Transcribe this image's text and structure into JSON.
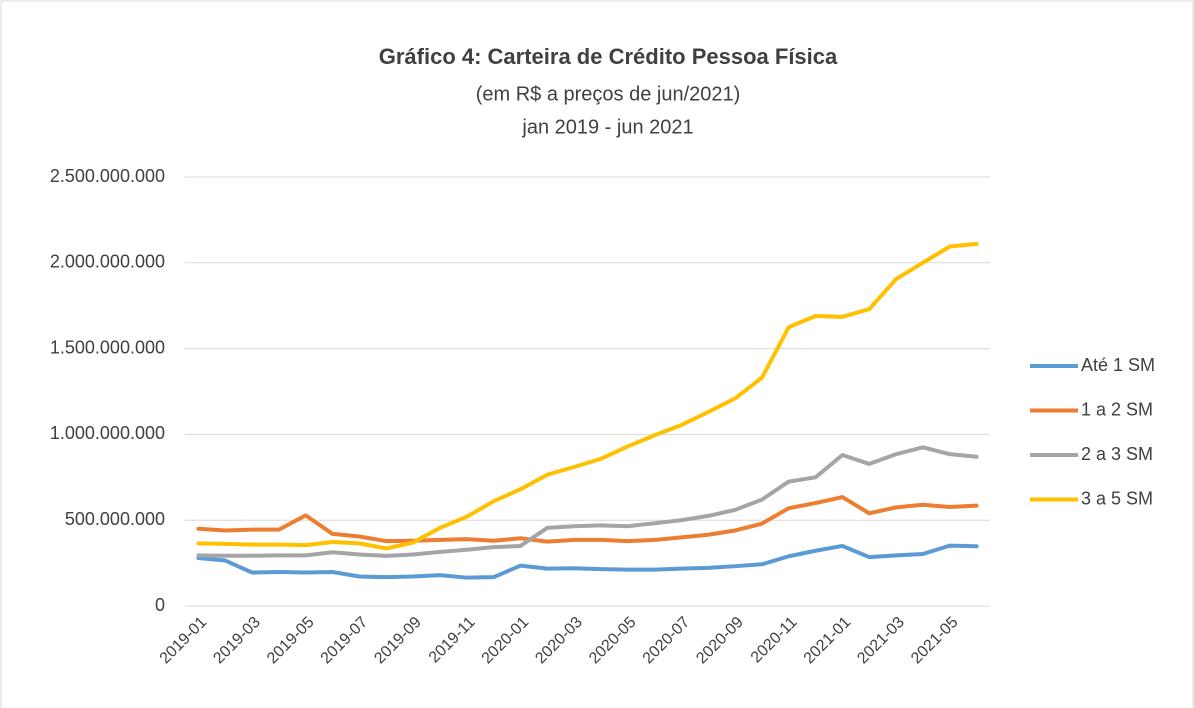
{
  "chart_data": {
    "type": "line",
    "title": "Gráfico 4: Carteira de Crédito Pessoa Física",
    "subtitle": [
      "(em R$ a preços de jun/2021)",
      "jan 2019 - jun 2021"
    ],
    "categories": [
      "2019-01",
      null,
      "2019-03",
      null,
      "2019-05",
      null,
      "2019-07",
      null,
      "2019-09",
      null,
      "2019-11",
      null,
      "2020-01",
      null,
      "2020-03",
      null,
      "2020-05",
      null,
      "2020-07",
      null,
      "2020-09",
      null,
      "2020-11",
      null,
      "2021-01",
      null,
      "2021-03",
      null,
      "2021-05",
      null
    ],
    "series": [
      {
        "name": "Até 1 SM",
        "color": "#5b9bd5",
        "values": [
          280000000,
          265000000,
          195000000,
          198000000,
          195000000,
          198000000,
          172000000,
          168000000,
          172000000,
          180000000,
          165000000,
          168000000,
          235000000,
          218000000,
          220000000,
          215000000,
          212000000,
          212000000,
          218000000,
          222000000,
          232000000,
          243000000,
          290000000,
          322000000,
          350000000,
          285000000,
          295000000,
          303000000,
          352000000,
          348000000
        ]
      },
      {
        "name": "1 a 2 SM",
        "color": "#ed7d31",
        "values": [
          450000000,
          440000000,
          445000000,
          445000000,
          528000000,
          420000000,
          405000000,
          378000000,
          380000000,
          385000000,
          390000000,
          380000000,
          395000000,
          375000000,
          385000000,
          385000000,
          378000000,
          385000000,
          400000000,
          415000000,
          440000000,
          480000000,
          570000000,
          600000000,
          635000000,
          540000000,
          575000000,
          590000000,
          577000000,
          585000000
        ]
      },
      {
        "name": "2 a 3 SM",
        "color": "#a5a5a5",
        "values": [
          295000000,
          293000000,
          293000000,
          295000000,
          295000000,
          313000000,
          300000000,
          292000000,
          300000000,
          315000000,
          328000000,
          343000000,
          350000000,
          455000000,
          465000000,
          470000000,
          465000000,
          482000000,
          500000000,
          525000000,
          560000000,
          620000000,
          725000000,
          750000000,
          880000000,
          828000000,
          885000000,
          925000000,
          885000000,
          870000000
        ]
      },
      {
        "name": "3 a 5 SM",
        "color": "#ffc000",
        "values": [
          365000000,
          362000000,
          358000000,
          358000000,
          355000000,
          373000000,
          365000000,
          335000000,
          370000000,
          455000000,
          520000000,
          610000000,
          680000000,
          765000000,
          810000000,
          858000000,
          930000000,
          995000000,
          1055000000,
          1130000000,
          1210000000,
          1330000000,
          1625000000,
          1690000000,
          1685000000,
          1730000000,
          1905000000,
          2000000000,
          2095000000,
          2110000000
        ]
      }
    ],
    "ylim": [
      0,
      2500000000
    ],
    "yticks": [
      0,
      {
        "value": 500000000,
        "label": "500.000.000"
      },
      {
        "value": 1000000000,
        "label": "1.000.000.000"
      },
      {
        "value": 1500000000,
        "label": "1.500.000.000"
      },
      {
        "value": 2000000000,
        "label": "2.000.000.000"
      },
      {
        "value": 2500000000,
        "label": "2.500.000.000"
      }
    ],
    "grid": true,
    "legend": "right"
  }
}
